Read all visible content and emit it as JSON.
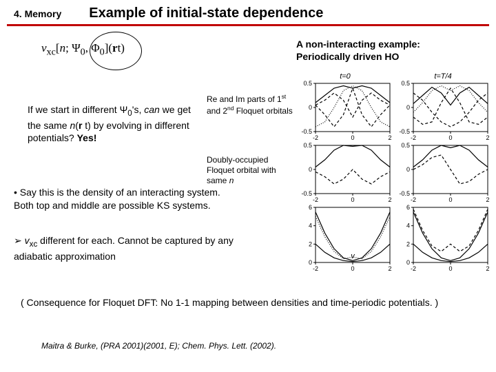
{
  "header": {
    "section": "4. Memory",
    "title": "Example of initial-state dependence"
  },
  "subtitle": {
    "line1": "A non-interacting example:",
    "line2": "Periodically driven HO"
  },
  "formula": "v_{xc}[n; Ψ₀, Φ₀](r t)",
  "para1_html": "If we start in different Ψ<sub>0</sub>'s, <i>can</i> we get the same <i>n</i>(<b>r</b> t) by evolving in different potentials? <b>Yes!</b>",
  "annot1_html": "Re and Im parts of 1<sup>st</sup> and 2<sup>nd</sup> Floquet orbitals",
  "annot2_html": "Doubly-occupied Floquet orbital with same <i>n</i>",
  "para2_html": "• Say this is the density of an interacting system. Both top and middle are possible KS systems.",
  "para3_html": "➢ <i>v</i><sub>xc</sub> different for each. Cannot be captured by any adiabatic approximation",
  "para4_html": "( Consequence for Floquet DFT: No 1-1 mapping between densities and time-periodic potentials. )",
  "cite": "Maitra & Burke, (PRA 2001)(2001, E); Chem. Phys. Lett. (2002).",
  "charts": {
    "col_titles": [
      "t=0",
      "t=T/4"
    ],
    "row1": {
      "ylim": [
        -0.5,
        0.5
      ],
      "xlim": [
        -2,
        2
      ],
      "xticks": [
        -2,
        0,
        2
      ],
      "yticks": [
        -0.5,
        0,
        0.5
      ],
      "axis_color": "#000000",
      "bg": "#ffffff",
      "series": [
        {
          "style": "solid",
          "x": [
            -2,
            -1.5,
            -1,
            -0.5,
            0,
            0.5,
            1,
            1.5,
            2
          ],
          "y": [
            0.1,
            0.25,
            0.4,
            0.45,
            0.4,
            0.45,
            0.4,
            0.25,
            0.1
          ]
        },
        {
          "style": "dash",
          "x": [
            -2,
            -1.5,
            -1,
            -0.5,
            0,
            0.5,
            1,
            1.5,
            2
          ],
          "y": [
            0.05,
            -0.15,
            -0.4,
            -0.15,
            0.4,
            -0.15,
            -0.4,
            -0.15,
            0.05
          ]
        },
        {
          "style": "dot",
          "x": [
            -2,
            -1.5,
            -1,
            -0.5,
            0,
            0.5,
            1,
            1.5,
            2
          ],
          "y": [
            -0.4,
            -0.3,
            0.0,
            0.35,
            0.45,
            0.35,
            0.0,
            -0.3,
            -0.4
          ]
        },
        {
          "style": "dash",
          "x": [
            -2,
            -1.5,
            -1,
            -0.5,
            0,
            0.5,
            1,
            1.5,
            2
          ],
          "y": [
            0.05,
            0.15,
            0.3,
            0.15,
            -0.2,
            0.15,
            0.3,
            0.15,
            0.05
          ]
        }
      ]
    },
    "row1b": {
      "ylim": [
        -0.5,
        0.5
      ],
      "xlim": [
        -2,
        2
      ],
      "xticks": [
        -2,
        0,
        2
      ],
      "yticks": [
        -0.5,
        0,
        0.5
      ],
      "series": [
        {
          "style": "solid",
          "x": [
            -2,
            -1.5,
            -1,
            -0.5,
            0,
            0.5,
            1,
            1.5,
            2
          ],
          "y": [
            0.08,
            0.25,
            0.42,
            0.3,
            0.05,
            0.3,
            0.42,
            0.25,
            0.08
          ]
        },
        {
          "style": "dash",
          "x": [
            -2,
            -1.5,
            -1,
            -0.5,
            0,
            0.5,
            1,
            1.5,
            2
          ],
          "y": [
            -0.2,
            -0.35,
            -0.3,
            0.1,
            0.4,
            0.1,
            -0.3,
            -0.35,
            -0.2
          ]
        },
        {
          "style": "dot",
          "x": [
            -2,
            -1.5,
            -1,
            -0.5,
            0,
            0.5,
            1,
            1.5,
            2
          ],
          "y": [
            -0.1,
            0.1,
            0.35,
            0.45,
            0.35,
            0.45,
            0.35,
            0.1,
            -0.1
          ]
        },
        {
          "style": "dash",
          "x": [
            -2,
            -1.5,
            -1,
            -0.5,
            0,
            0.5,
            1,
            1.5,
            2
          ],
          "y": [
            0.3,
            0.15,
            -0.1,
            -0.3,
            -0.4,
            -0.3,
            -0.1,
            0.15,
            0.3
          ]
        }
      ]
    },
    "row2": {
      "ylim": [
        -0.5,
        0.5
      ],
      "xlim": [
        -2,
        2
      ],
      "xticks": [
        -2,
        0,
        2
      ],
      "yticks": [
        -0.5,
        0,
        0.5
      ],
      "series": [
        {
          "style": "solid",
          "x": [
            -2,
            -1.5,
            -1,
            -0.5,
            0,
            0.5,
            1,
            1.5,
            2
          ],
          "y": [
            0.05,
            0.2,
            0.4,
            0.5,
            0.48,
            0.5,
            0.4,
            0.2,
            0.05
          ]
        },
        {
          "style": "dash",
          "x": [
            -2,
            -1.5,
            -1,
            -0.5,
            0,
            0.5,
            1,
            1.5,
            2
          ],
          "y": [
            -0.05,
            -0.15,
            -0.3,
            -0.2,
            0.0,
            -0.2,
            -0.3,
            -0.15,
            -0.05
          ]
        }
      ]
    },
    "row2b": {
      "ylim": [
        -0.5,
        0.5
      ],
      "xlim": [
        -2,
        2
      ],
      "xticks": [
        -2,
        0,
        2
      ],
      "yticks": [
        -0.5,
        0,
        0.5
      ],
      "series": [
        {
          "style": "solid",
          "x": [
            -2,
            -1.5,
            -1,
            -0.5,
            0,
            0.5,
            1,
            1.5,
            2
          ],
          "y": [
            0.05,
            0.2,
            0.4,
            0.5,
            0.45,
            0.5,
            0.4,
            0.2,
            0.05
          ]
        },
        {
          "style": "dash",
          "x": [
            -2,
            -1.5,
            -1,
            -0.5,
            0,
            0.5,
            1,
            1.5,
            2
          ],
          "y": [
            0.0,
            0.1,
            0.25,
            0.3,
            0.0,
            -0.3,
            -0.25,
            -0.1,
            0.0
          ]
        }
      ]
    },
    "row3": {
      "ylim": [
        0,
        6
      ],
      "xlim": [
        -2,
        2
      ],
      "xticks": [
        -2,
        0,
        2
      ],
      "yticks": [
        0,
        2,
        4,
        6
      ],
      "series": [
        {
          "style": "solid",
          "x": [
            -2,
            -1.5,
            -1,
            -0.5,
            0,
            0.5,
            1,
            1.5,
            2
          ],
          "y": [
            5.5,
            3.2,
            1.5,
            0.5,
            0.2,
            0.5,
            1.5,
            3.2,
            5.5
          ]
        },
        {
          "style": "dot",
          "x": [
            -2,
            -1.5,
            -1,
            -0.5,
            0,
            0.5,
            1,
            1.5,
            2
          ],
          "y": [
            5.0,
            2.8,
            1.2,
            0.4,
            0.6,
            0.4,
            1.2,
            2.8,
            5.0
          ]
        },
        {
          "style": "solid",
          "x": [
            -2,
            -1.5,
            -1,
            -0.5,
            0,
            0.5,
            1,
            1.5,
            2
          ],
          "y": [
            2.0,
            1.1,
            0.5,
            0.2,
            0.1,
            0.2,
            0.5,
            1.1,
            2.0
          ]
        }
      ],
      "label": "v"
    },
    "row3b": {
      "ylim": [
        0,
        6
      ],
      "xlim": [
        -2,
        2
      ],
      "xticks": [
        -2,
        0,
        2
      ],
      "yticks": [
        0,
        2,
        4,
        6
      ],
      "series": [
        {
          "style": "solid",
          "x": [
            -2,
            -1.5,
            -1,
            -0.5,
            0,
            0.5,
            1,
            1.5,
            2
          ],
          "y": [
            5.5,
            3.2,
            1.5,
            0.5,
            0.2,
            0.5,
            1.5,
            3.2,
            5.5
          ]
        },
        {
          "style": "dash",
          "x": [
            -2,
            -1.5,
            -1,
            -0.5,
            0,
            0.5,
            1,
            1.5,
            2
          ],
          "y": [
            5.8,
            3.5,
            1.8,
            1.2,
            2.0,
            1.2,
            1.8,
            3.5,
            5.8
          ]
        },
        {
          "style": "solid",
          "x": [
            -2,
            -1.5,
            -1,
            -0.5,
            0,
            0.5,
            1,
            1.5,
            2
          ],
          "y": [
            2.0,
            1.1,
            0.5,
            0.2,
            0.1,
            0.2,
            0.5,
            1.1,
            2.0
          ]
        }
      ]
    }
  }
}
